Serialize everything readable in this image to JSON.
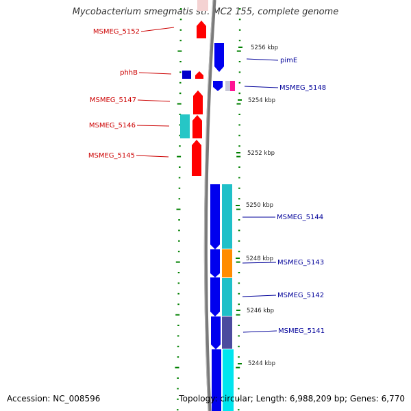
{
  "title": "Mycobacterium smegmatis str. MC2 155, complete genome",
  "accession": "Accession: NC_008596",
  "topology": "Topology: circular; Length: 6,988,209 bp; Genes: 6,770",
  "colors": {
    "forward_label": "#cc0000",
    "reverse_label": "#000099",
    "forward_gene": "#ff0000",
    "reverse_gene": "#0000ee",
    "backbone": "#808080",
    "tick": "#008000"
  },
  "scale_labels": [
    "5256 kbp",
    "5254 kbp",
    "5252 kbp",
    "5250 kbp",
    "5248 kbp",
    "5246 kbp",
    "5244 kbp"
  ],
  "gene_labels_left": [
    "MSMEG_5152",
    "phhB",
    "MSMEG_5147",
    "MSMEG_5146",
    "MSMEG_5145"
  ],
  "gene_labels_right": [
    "pimE",
    "MSMEG_5148",
    "MSMEG_5144",
    "MSMEG_5143",
    "MSMEG_5142",
    "MSMEG_5141"
  ]
}
